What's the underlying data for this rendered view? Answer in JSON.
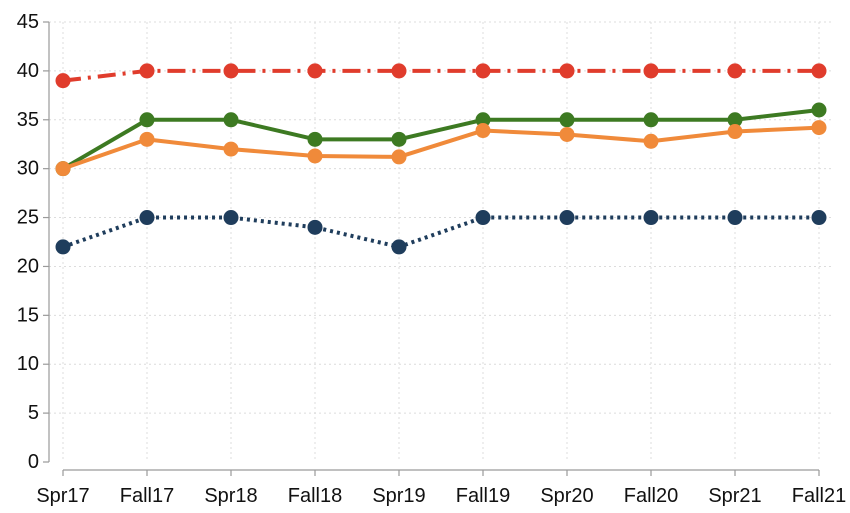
{
  "chart_data": {
    "type": "line",
    "title": "",
    "xlabel": "",
    "ylabel": "",
    "categories": [
      "Spr17",
      "Fall17",
      "Spr18",
      "Fall18",
      "Spr19",
      "Fall19",
      "Spr20",
      "Fall20",
      "Spr21",
      "Fall21"
    ],
    "ylim": [
      0,
      45
    ],
    "yticks": [
      0,
      5,
      10,
      15,
      20,
      25,
      30,
      35,
      40,
      45
    ],
    "grid": true,
    "legend": "none",
    "series": [
      {
        "color": "#e03c2c",
        "line_style": "dash-dot",
        "values": [
          39,
          40,
          40,
          40,
          40,
          40,
          40,
          40,
          40,
          40
        ]
      },
      {
        "color": "#3d7a22",
        "line_style": "solid",
        "values": [
          30,
          35,
          35,
          33,
          33,
          35,
          35,
          35,
          35,
          36
        ]
      },
      {
        "color": "#f08a3a",
        "line_style": "solid",
        "values": [
          30,
          33,
          32,
          31.3,
          31.2,
          33.9,
          33.5,
          32.8,
          33.8,
          34.2
        ]
      },
      {
        "color": "#1f3d5c",
        "line_style": "dotted",
        "values": [
          22,
          25,
          25,
          24,
          22,
          25,
          25,
          25,
          25,
          25
        ]
      }
    ]
  }
}
